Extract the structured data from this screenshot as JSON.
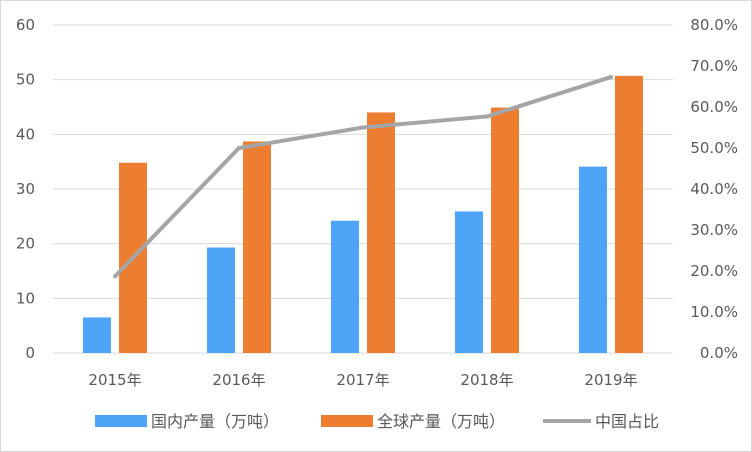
{
  "chart_data": {
    "type": "bar",
    "categories": [
      "2015年",
      "2016年",
      "2017年",
      "2018年",
      "2019年"
    ],
    "series": [
      {
        "name": "国内产量（万吨）",
        "type": "bar",
        "axis": "left",
        "color": "#4da3f5",
        "values": [
          6.5,
          19.3,
          24.2,
          25.9,
          34.1
        ]
      },
      {
        "name": "全球产量（万吨）",
        "type": "bar",
        "axis": "left",
        "color": "#ed7d31",
        "values": [
          34.8,
          38.7,
          44.0,
          44.9,
          50.7
        ]
      },
      {
        "name": "中国占比",
        "type": "line",
        "axis": "right",
        "color": "#a5a5a5",
        "values": [
          18.7,
          50.0,
          55.0,
          57.7,
          67.3
        ]
      }
    ],
    "y_left": {
      "min": 0,
      "max": 60,
      "step": 10,
      "tick_labels": [
        "0",
        "10",
        "20",
        "30",
        "40",
        "50",
        "60"
      ]
    },
    "y_right": {
      "min": 0,
      "max": 80,
      "step": 10,
      "tick_labels": [
        "0.0%",
        "10.0%",
        "20.0%",
        "30.0%",
        "40.0%",
        "50.0%",
        "60.0%",
        "70.0%",
        "80.0%"
      ]
    },
    "grid": true,
    "legend_position": "bottom"
  }
}
